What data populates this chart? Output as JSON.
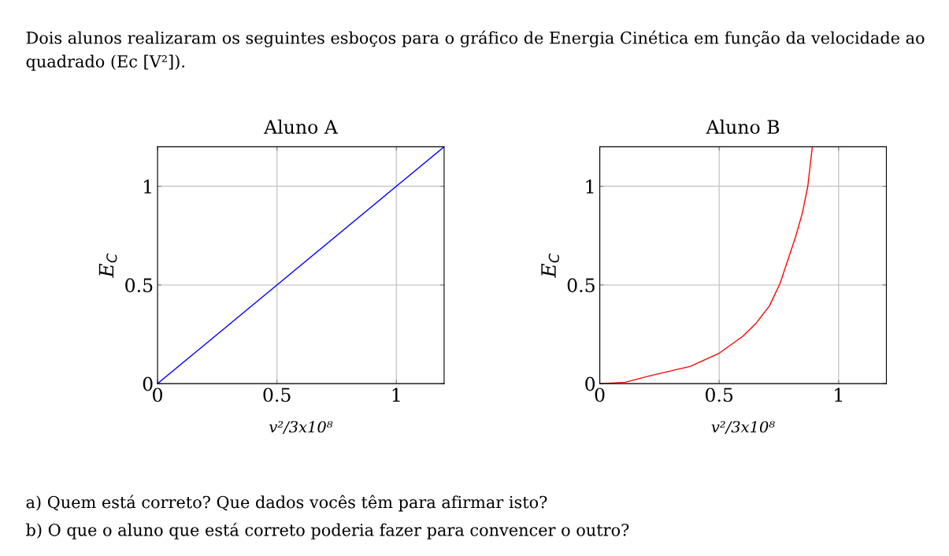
{
  "chart_data": [
    {
      "type": "line",
      "title": "Aluno A",
      "xlabel": "v²/3x10⁸",
      "ylabel": "E$_{C}$",
      "annotations": [
        "Dois alunos realizaram os seguintes esboços para o gráfico de Energia Cinética em função da velocidade ao quadrado (Ec [V²]).",
        "a) Quem está correto? Que dados vocês têm para afirmar isto?",
        "b) O que o aluno que está correto poderia fazer para convencer o outro?"
      ],
      "x": [
        0,
        1.2
      ],
      "series": [
        {
          "color": "#0000ff",
          "values": [
            0,
            1.2
          ]
        }
      ],
      "xlim": [
        0,
        1.2
      ],
      "ylim": [
        0,
        1.2
      ],
      "xticks": [
        0,
        0.5,
        1
      ],
      "yticks": [
        0,
        0.5,
        1
      ],
      "grid": true
    },
    {
      "type": "line",
      "title": "Aluno B",
      "xlabel": "v²/3x10⁸",
      "ylabel": "E$_{C}$",
      "x": [
        0,
        0.107,
        0.214,
        0.38,
        0.501,
        0.6,
        0.656,
        0.711,
        0.755,
        0.788,
        0.821,
        0.849,
        0.871,
        0.89
      ],
      "series": [
        {
          "color": "#ff0000",
          "values": [
            0,
            0.007,
            0.041,
            0.088,
            0.155,
            0.241,
            0.308,
            0.395,
            0.508,
            0.628,
            0.748,
            0.868,
            1.0,
            1.2
          ]
        }
      ],
      "xlim": [
        0,
        1.2
      ],
      "ylim": [
        0,
        1.2
      ],
      "xticks": [
        0,
        0.5,
        1
      ],
      "yticks": [
        0,
        0.5,
        1
      ],
      "grid": true
    }
  ]
}
